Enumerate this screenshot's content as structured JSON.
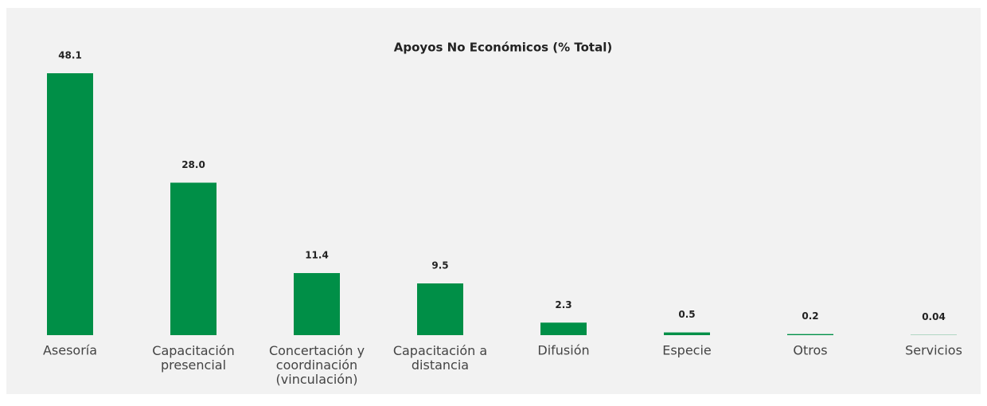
{
  "chart_data": {
    "type": "bar",
    "title": "Apoyos No Económicos (% Total)",
    "categories": [
      "Asesoría",
      "Capacitación\npresencial",
      "Concertación y\ncoordinación\n(vinculación)",
      "Capacitación a\ndistancia",
      "Difusión",
      "Especie",
      "Otros",
      "Servicios"
    ],
    "values": [
      48.1,
      28.0,
      11.4,
      9.5,
      2.3,
      0.5,
      0.2,
      0.04
    ],
    "value_labels": [
      "48.1",
      "28.0",
      "11.4",
      "9.5",
      "2.3",
      "0.5",
      "0.2",
      "0.04"
    ],
    "color": "#008f47"
  }
}
